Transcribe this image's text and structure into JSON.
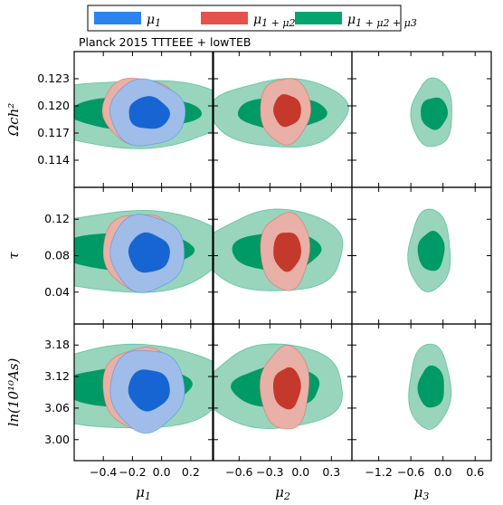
{
  "chart_data": {
    "type": "contour-triangle",
    "title": "Planck 2015 TTTEEE + lowTEB",
    "legend": {
      "placement": "top",
      "entries": [
        {
          "label": "μ1",
          "base": "μ",
          "sub": "1",
          "color": "#2d83ee"
        },
        {
          "label": "μ1 + μ2",
          "base": "μ",
          "sub": "1 + μ2",
          "color": "#e5524b"
        },
        {
          "label": "μ1 + μ2 + μ3",
          "base": "μ",
          "sub": "1 + μ2 + μ3",
          "color": "#01a46d"
        }
      ]
    },
    "columns": [
      {
        "label": "μ",
        "sub": "1",
        "xlim": [
          -0.6,
          0.35
        ],
        "ticks": [
          -0.4,
          -0.2,
          0.0,
          0.2
        ],
        "tick_labels": [
          "−0.4",
          "−0.2",
          "0.0",
          "0.2"
        ]
      },
      {
        "label": "μ",
        "sub": "2",
        "xlim": [
          -0.85,
          0.5
        ],
        "ticks": [
          -0.6,
          -0.3,
          0.0,
          0.3
        ],
        "tick_labels": [
          "−0.6",
          "−0.3",
          "0.0",
          "0.3"
        ]
      },
      {
        "label": "μ",
        "sub": "3",
        "xlim": [
          -1.7,
          0.9
        ],
        "ticks": [
          -1.2,
          -0.6,
          0.0,
          0.6
        ],
        "tick_labels": [
          "−1.2",
          "−0.6",
          "0.0",
          "0.6"
        ]
      }
    ],
    "rows": [
      {
        "label": "Ωch²",
        "ylim": [
          0.111,
          0.126
        ],
        "ticks": [
          0.114,
          0.117,
          0.12,
          0.123
        ],
        "tick_labels": [
          "0.114",
          "0.117",
          "0.120",
          "0.123"
        ]
      },
      {
        "label": "τ",
        "ylim": [
          0.005,
          0.155
        ],
        "ticks": [
          0.04,
          0.08,
          0.12
        ],
        "tick_labels": [
          "0.04",
          "0.08",
          "0.12"
        ]
      },
      {
        "label": "ln(10¹⁰As)",
        "ylim": [
          2.96,
          3.22
        ],
        "ticks": [
          3.0,
          3.06,
          3.12,
          3.18
        ],
        "tick_labels": [
          "3.00",
          "3.06",
          "3.12",
          "3.18"
        ]
      }
    ],
    "series": [
      {
        "name": "μ1",
        "color": "#2d83ee",
        "fill_inner": "#1765d2",
        "fill_outer": "#9fbde8",
        "free": [
          true,
          false,
          false
        ]
      },
      {
        "name": "μ1 + μ2",
        "color": "#e5524b",
        "fill_inner": "#c5382c",
        "fill_outer": "#e8b0a6",
        "free": [
          true,
          true,
          false
        ]
      },
      {
        "name": "μ1 + μ2 + μ3",
        "color": "#01a46d",
        "fill_inner": "#009a66",
        "fill_outer": "#99d4bd",
        "free": [
          true,
          true,
          true
        ]
      }
    ],
    "contours": [
      [
        {
          "center": [
            -0.1,
            0.1192
          ],
          "inner": [
            0.14,
            0.0018
          ],
          "outer": [
            0.255,
            0.0037
          ]
        },
        {
          "center": [
            -0.15,
            0.1195
          ],
          "inner": [
            0.14,
            0.0018
          ],
          "outer": [
            0.255,
            0.0037
          ]
        },
        {
          "center": [
            -0.2,
            0.1192
          ],
          "inner": [
            0.45,
            0.0018
          ],
          "outer": [
            0.7,
            0.0038
          ]
        }
      ],
      [
        {
          "center": [
            -0.1,
            0.083
          ],
          "inner": [
            0.14,
            0.022
          ],
          "outer": [
            0.25,
            0.043
          ]
        },
        {
          "center": [
            -0.15,
            0.085
          ],
          "inner": [
            0.14,
            0.022
          ],
          "outer": [
            0.25,
            0.043
          ]
        },
        {
          "center": [
            -0.25,
            0.085
          ],
          "inner": [
            0.45,
            0.022
          ],
          "outer": [
            0.72,
            0.045
          ]
        }
      ],
      [
        {
          "center": [
            -0.1,
            3.095
          ],
          "inner": [
            0.14,
            0.04
          ],
          "outer": [
            0.25,
            0.08
          ]
        },
        {
          "center": [
            -0.15,
            3.098
          ],
          "inner": [
            0.14,
            0.04
          ],
          "outer": [
            0.25,
            0.08
          ]
        },
        {
          "center": [
            -0.25,
            3.1
          ],
          "inner": [
            0.45,
            0.04
          ],
          "outer": [
            0.72,
            0.08
          ]
        }
      ]
    ]
  }
}
